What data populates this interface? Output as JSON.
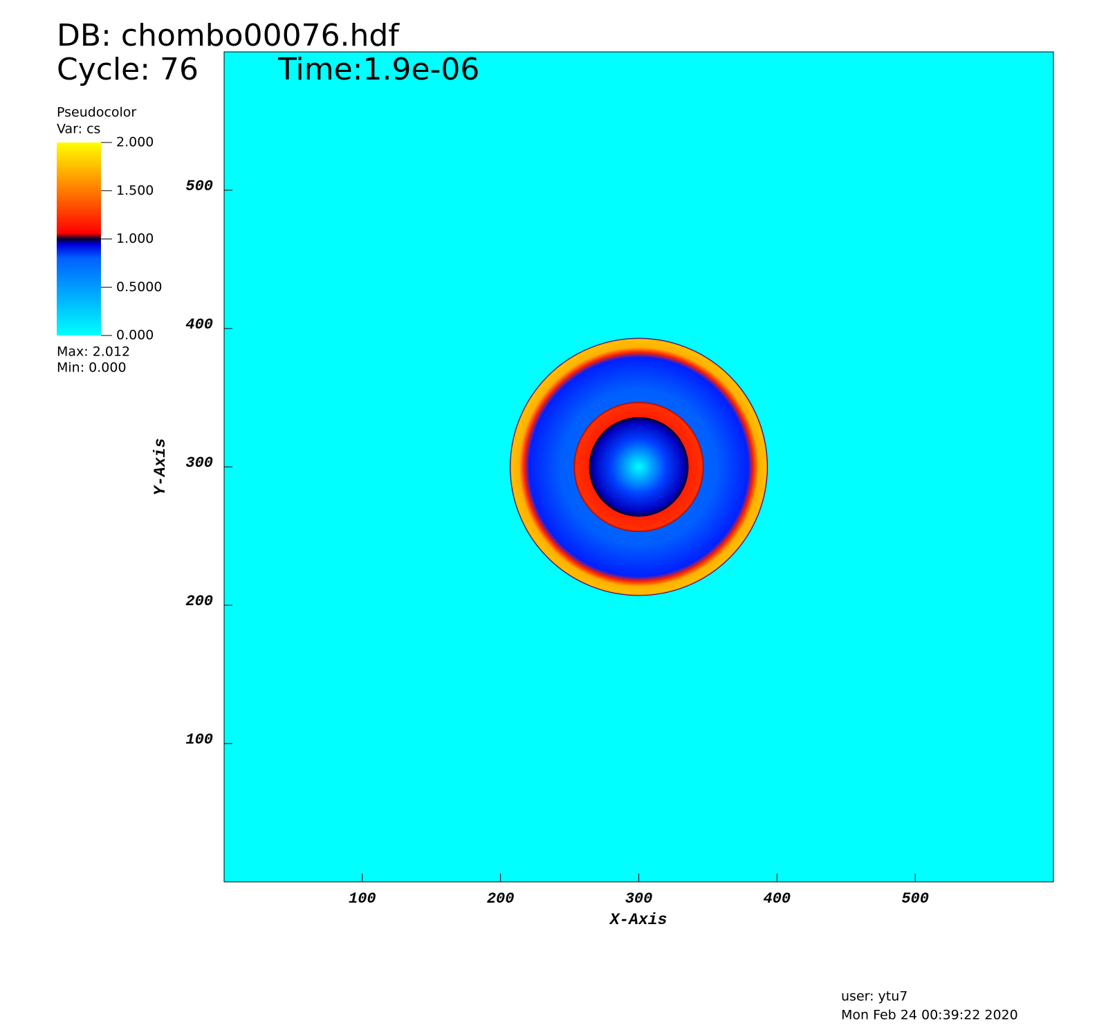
{
  "chart_data": {
    "type": "pseudocolor",
    "db_label": "DB: chombo00076.hdf",
    "cycle_label": "Cycle: 76",
    "time_label": "Time:1.9e-06",
    "legend_title": "Pseudocolor",
    "legend_var": "Var: cs",
    "legend_max": "Max:  2.012",
    "legend_min": "Min:  0.000",
    "clim": [
      0,
      2
    ],
    "cticks": [
      {
        "value": 2,
        "label": "2.000"
      },
      {
        "value": 1.5,
        "label": "1.500"
      },
      {
        "value": 1,
        "label": "1.000"
      },
      {
        "value": 0.5,
        "label": "0.5000"
      },
      {
        "value": 0,
        "label": "0.000"
      }
    ],
    "x_label": "X-Axis",
    "y_label": "Y-Axis",
    "xlim": [
      0,
      600
    ],
    "ylim": [
      0,
      600
    ],
    "xticks": [
      100,
      200,
      300,
      400,
      500
    ],
    "yticks": [
      100,
      200,
      300,
      400,
      500
    ],
    "user": "user: ytu7",
    "date": "Mon Feb 24 00:39:22 2020"
  }
}
